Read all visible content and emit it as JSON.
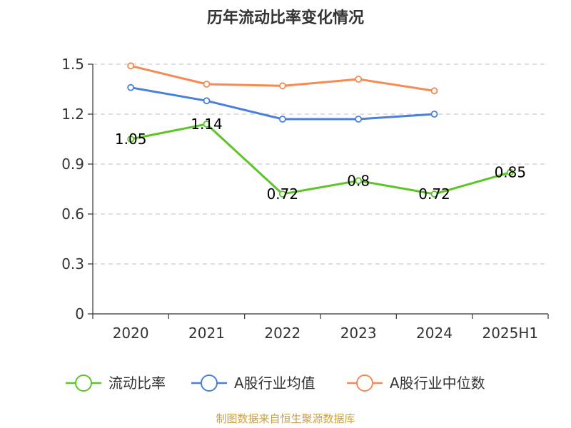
{
  "chart_data": {
    "type": "line",
    "title": "历年流动比率变化情况",
    "categories": [
      "2020",
      "2021",
      "2022",
      "2023",
      "2024",
      "2025H1"
    ],
    "y_ticks": [
      "0",
      "0.3",
      "0.6",
      "0.9",
      "1.2",
      "1.5"
    ],
    "ylim": [
      0,
      1.5
    ],
    "grid": "horizontal dashed",
    "legend_position": "bottom",
    "series": [
      {
        "name": "流动比率",
        "color": "#5dc42a",
        "values": [
          1.05,
          1.14,
          0.72,
          0.8,
          0.72,
          0.85
        ],
        "data_labels": [
          "1.05",
          "1.14",
          "0.72",
          "0.8",
          "0.72",
          "0.85"
        ]
      },
      {
        "name": "A股行业均值",
        "color": "#4a7fdc",
        "values": [
          1.36,
          1.28,
          1.17,
          1.17,
          1.2,
          null
        ]
      },
      {
        "name": "A股行业中位数",
        "color": "#f58a52",
        "values": [
          1.49,
          1.38,
          1.37,
          1.41,
          1.34,
          null
        ]
      }
    ]
  },
  "source": "制图数据来自恒生聚源数据库"
}
